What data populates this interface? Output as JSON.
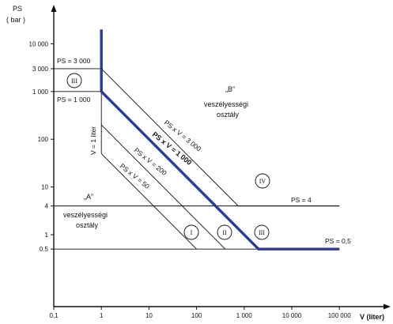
{
  "chart_data": {
    "type": "line",
    "title": "",
    "xlabel": "V (liter)",
    "ylabel": "PS",
    "ylabel_unit": "( bar )",
    "x_scale": "log",
    "y_scale": "log",
    "xlim": [
      0.1,
      100000
    ],
    "ylim": [
      0.5,
      10000
    ],
    "x_ticks": [
      {
        "v": 0.1,
        "label": "0,1"
      },
      {
        "v": 1,
        "label": "1"
      },
      {
        "v": 10,
        "label": "10"
      },
      {
        "v": 100,
        "label": "100"
      },
      {
        "v": 1000,
        "label": "1 000"
      },
      {
        "v": 10000,
        "label": "10 000"
      },
      {
        "v": 100000,
        "label": "100 000"
      }
    ],
    "y_ticks": [
      {
        "v": 10000,
        "label": "10 000"
      },
      {
        "v": 3000,
        "label": "3 000"
      },
      {
        "v": 1000,
        "label": "1 000"
      },
      {
        "v": 100,
        "label": "100"
      },
      {
        "v": 10,
        "label": "10"
      },
      {
        "v": 4,
        "label": "4"
      },
      {
        "v": 1,
        "label": "1"
      },
      {
        "v": 0.5,
        "label": "0.5"
      }
    ],
    "series": [
      {
        "id": "ps_v_50",
        "label": "PS x V = 50",
        "color": "#111111",
        "emphasis": false,
        "points": [
          [
            1,
            50
          ],
          [
            100,
            0.5
          ]
        ]
      },
      {
        "id": "ps_v_200",
        "label": "PS x V = 200",
        "color": "#111111",
        "emphasis": false,
        "points": [
          [
            1,
            200
          ],
          [
            400,
            0.5
          ]
        ]
      },
      {
        "id": "ps_v_1000",
        "label": "PS x V = 1 000",
        "color": "#2b3a97",
        "emphasis": true,
        "points": [
          [
            1,
            20000
          ],
          [
            1,
            1000
          ],
          [
            2000,
            0.5
          ],
          [
            100000,
            0.5
          ]
        ]
      },
      {
        "id": "ps_v_3000",
        "label": "PS x V = 3 000",
        "color": "#111111",
        "emphasis": false,
        "points": [
          [
            1,
            3000
          ],
          [
            750,
            4
          ],
          [
            100000,
            4
          ]
        ]
      }
    ],
    "reference_lines": [
      {
        "id": "ps_3000",
        "label": "PS = 3 000",
        "y": 3000,
        "x_from": 0.1,
        "x_to": 1
      },
      {
        "id": "ps_1000",
        "label": "PS = 1 000",
        "y": 1000,
        "x_from": 0.1,
        "x_to": 1
      },
      {
        "id": "ps_4",
        "label": "PS = 4",
        "y": 4,
        "x_from": 750,
        "x_to": 100000
      },
      {
        "id": "ps_05",
        "label": "PS = 0,5",
        "y": 0.5,
        "x_from": 0.1,
        "x_to": 100000
      }
    ],
    "vertical_line": {
      "label": "V = 1 liter",
      "x": 1,
      "y_from": 0.5,
      "y_to": 0.5
    },
    "annotations": [
      {
        "id": "roman_3_left",
        "text": "III",
        "x": 0.3,
        "y": 2000
      },
      {
        "id": "roman_1",
        "text": "I",
        "x": 110,
        "y": 1
      },
      {
        "id": "roman_2",
        "text": "II",
        "x": 370,
        "y": 1
      },
      {
        "id": "roman_3",
        "text": "III",
        "x": 1900,
        "y": 1
      },
      {
        "id": "roman_4",
        "text": "IV",
        "x": 2500,
        "y": 14
      }
    ],
    "regions": [
      {
        "id": "region_a",
        "lines": [
          "„A”",
          "veszélyességi",
          "osztály"
        ]
      },
      {
        "id": "region_b",
        "lines": [
          "„B”",
          "veszélyességi",
          "osztály"
        ]
      }
    ]
  }
}
